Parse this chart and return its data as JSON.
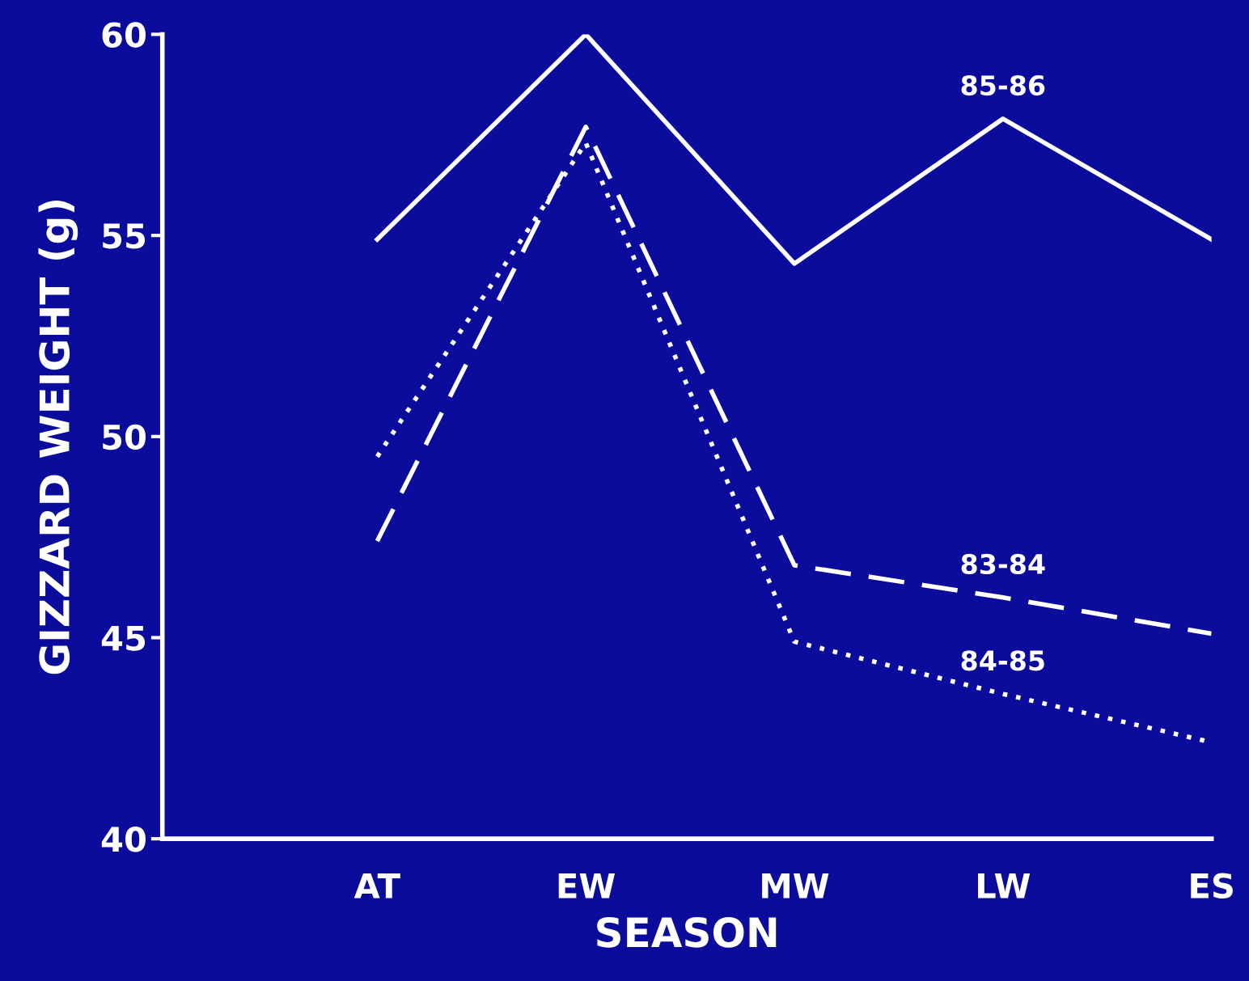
{
  "chart_data": {
    "type": "line",
    "xlabel": "SEASON",
    "ylabel": "GIZZARD WEIGHT (g)",
    "categories": [
      "AT",
      "EW",
      "MW",
      "LW",
      "ES"
    ],
    "ylim": [
      40,
      60
    ],
    "yticks": [
      40,
      45,
      50,
      55,
      60
    ],
    "grid": false,
    "legend": false,
    "series": [
      {
        "name": "85-86",
        "color": "#ffffff",
        "line_style": "solid",
        "values": [
          54.9,
          60.0,
          54.3,
          57.9,
          54.9
        ]
      },
      {
        "name": "83-84",
        "color": "#ffffff",
        "line_style": "dashed",
        "values": [
          47.4,
          57.7,
          46.8,
          46.0,
          45.1
        ]
      },
      {
        "name": "84-85",
        "color": "#ffffff",
        "line_style": "dotted",
        "values": [
          49.5,
          57.3,
          44.9,
          43.6,
          42.4
        ]
      }
    ]
  }
}
